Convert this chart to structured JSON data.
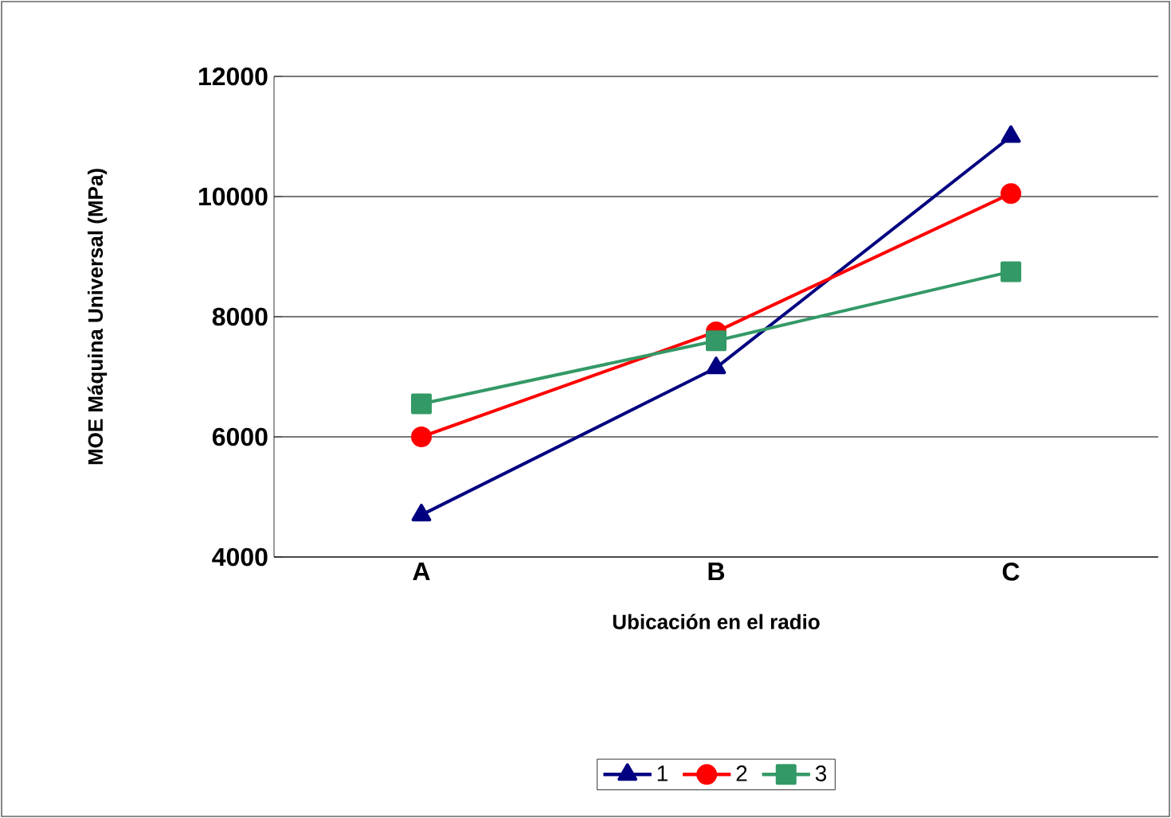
{
  "chart_data": {
    "type": "line",
    "xlabel": "Ubicación en el radio",
    "ylabel": "MOE Máquina Universal (MPa)",
    "categories": [
      "A",
      "B",
      "C"
    ],
    "series": [
      {
        "name": "1",
        "color": "#000080",
        "marker": "triangle",
        "values": [
          4700,
          7150,
          11000
        ]
      },
      {
        "name": "2",
        "color": "#ff0000",
        "marker": "circle",
        "values": [
          6000,
          7750,
          10050
        ]
      },
      {
        "name": "3",
        "color": "#339966",
        "marker": "square",
        "values": [
          6550,
          7600,
          8750
        ]
      }
    ],
    "ylim": [
      4000,
      12000
    ],
    "yticks": [
      4000,
      6000,
      8000,
      10000,
      12000
    ],
    "grid": "y",
    "legend": "bottom",
    "line_style": "solid"
  }
}
